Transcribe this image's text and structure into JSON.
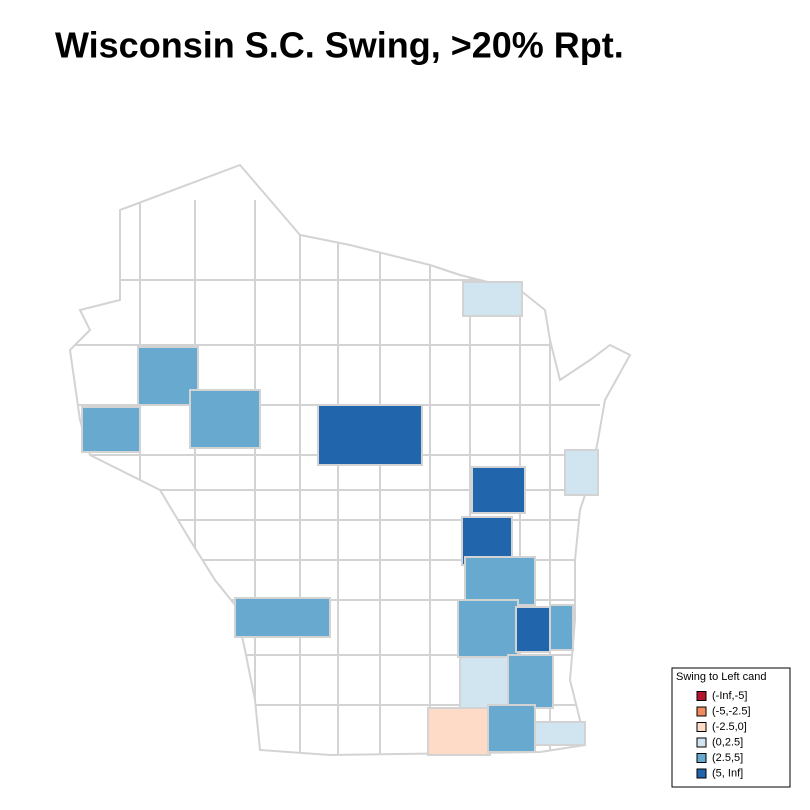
{
  "title": "Wisconsin S.C. Swing, >20% Rpt.",
  "legend": {
    "title": "Swing to Left cand",
    "items": [
      {
        "label": "(-Inf,-5]",
        "color": "#b2182b"
      },
      {
        "label": "(-5,-2.5]",
        "color": "#ef8a62"
      },
      {
        "label": "(-2.5,0]",
        "color": "#fddbc7"
      },
      {
        "label": "(0,2.5]",
        "color": "#d1e5f0"
      },
      {
        "label": "(2.5,5]",
        "color": "#67a9cf"
      },
      {
        "label": "(5, Inf]",
        "color": "#2166ac"
      }
    ]
  }
}
